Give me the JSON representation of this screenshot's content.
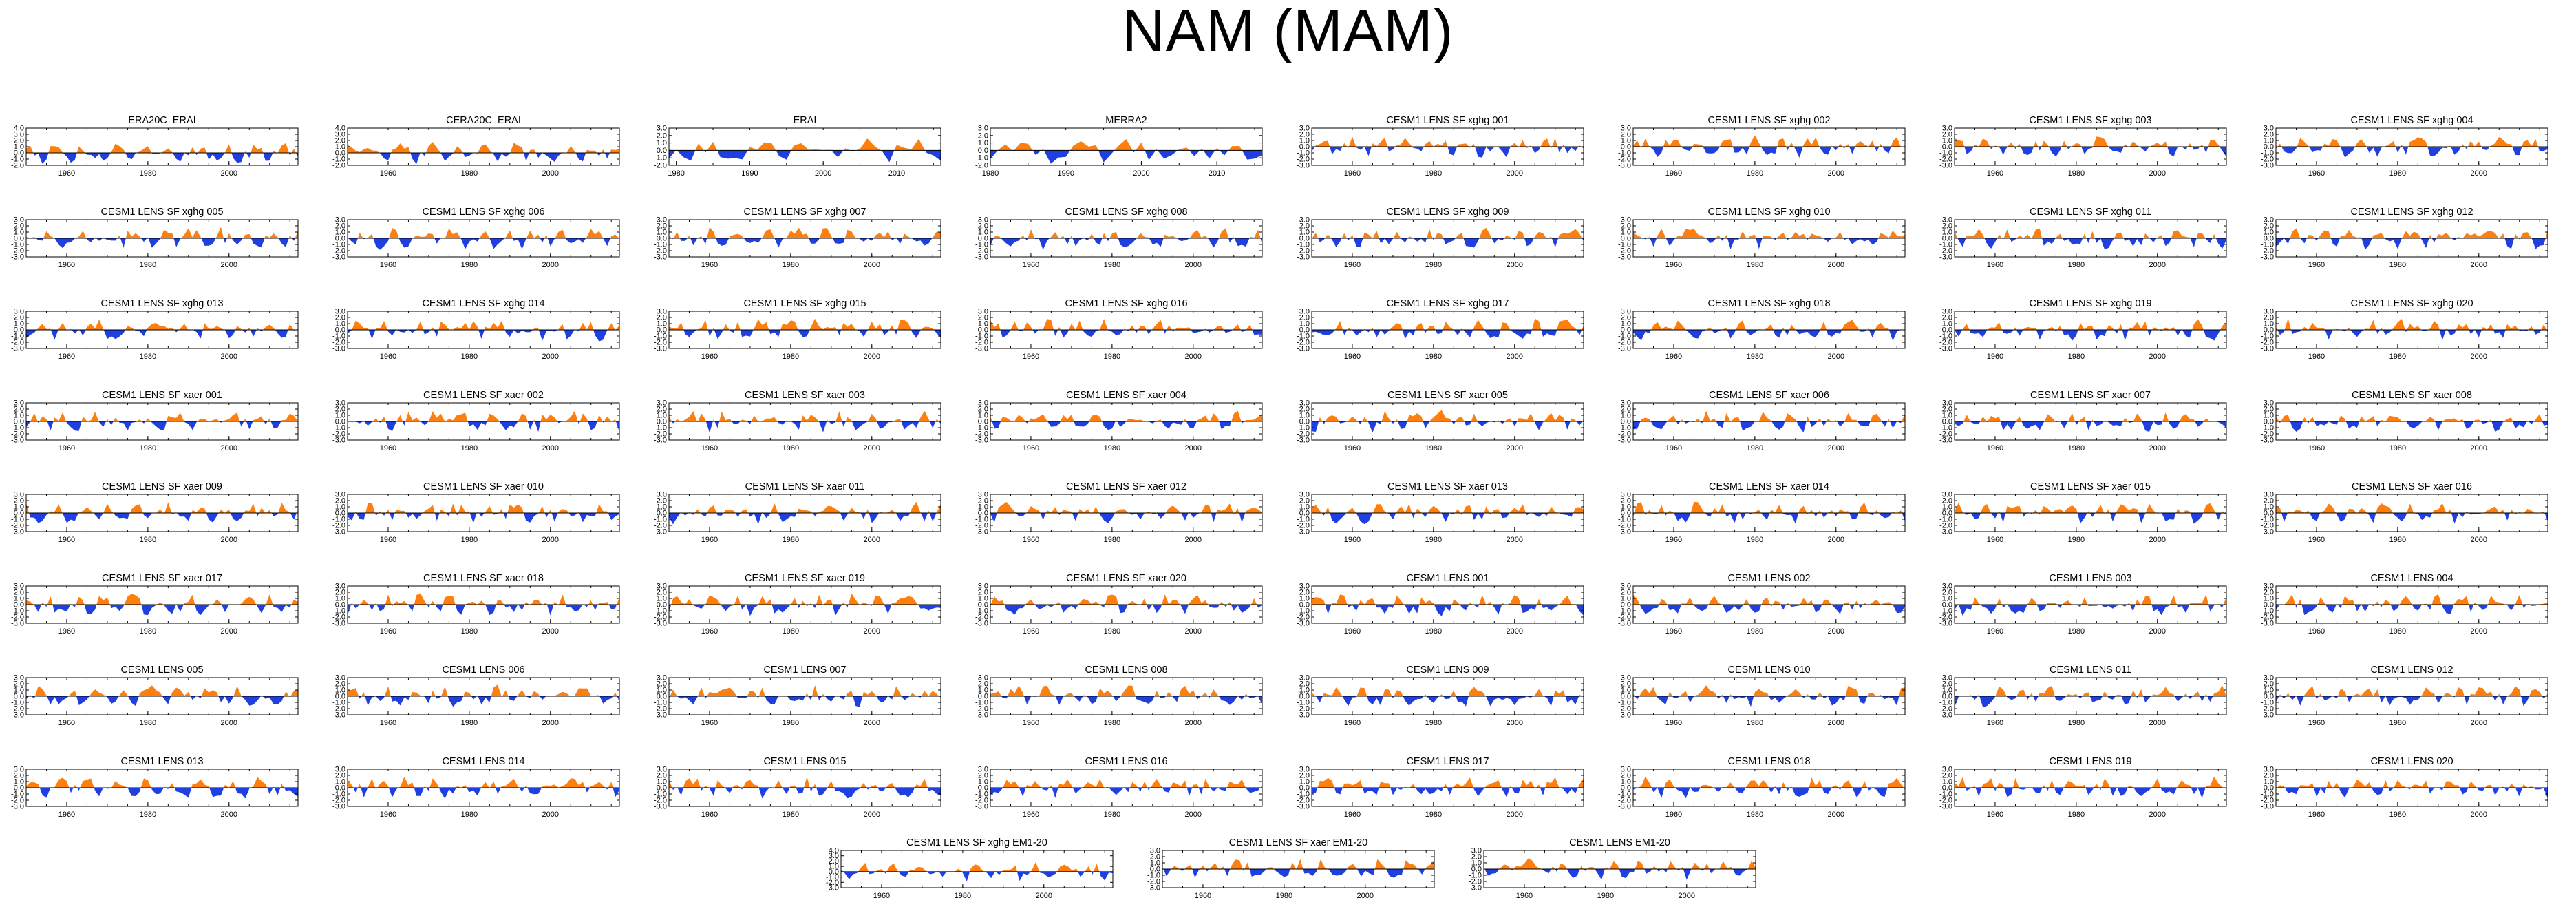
{
  "page": {
    "title": "NAM (MAM)"
  },
  "colors": {
    "positive": "#ff7f0e",
    "negative": "#1f3fe0",
    "axis": "#000000"
  },
  "chart_data": {
    "type": "area",
    "panels": [
      {
        "title": "ERA20C_ERAI",
        "x_range": [
          1950,
          2017
        ],
        "x_ticks": [
          1960,
          1980,
          2000
        ],
        "y_ticks": [
          "4.0",
          "3.0",
          "2.0",
          "1.0",
          "0.0",
          "-1.0",
          "-2.0"
        ],
        "ylim": [
          -2,
          4
        ],
        "seed": 1
      },
      {
        "title": "CERA20C_ERAI",
        "x_range": [
          1950,
          2017
        ],
        "x_ticks": [
          1960,
          1980,
          2000
        ],
        "y_ticks": [
          "4.0",
          "3.0",
          "2.0",
          "1.0",
          "0.0",
          "-1.0",
          "-2.0"
        ],
        "ylim": [
          -2,
          4
        ],
        "seed": 2
      },
      {
        "title": "ERAI",
        "x_range": [
          1979,
          2016
        ],
        "x_ticks": [
          1980,
          1990,
          2000,
          2010
        ],
        "y_ticks": [
          "3.0",
          "2.0",
          "1.0",
          "0.0",
          "-1.0",
          "-2.0"
        ],
        "ylim": [
          -2,
          3
        ],
        "seed": 3
      },
      {
        "title": "MERRA2",
        "x_range": [
          1980,
          2016
        ],
        "x_ticks": [
          1980,
          1990,
          2000,
          2010
        ],
        "y_ticks": [
          "3.0",
          "2.0",
          "1.0",
          "0.0",
          "-1.0",
          "-2.0"
        ],
        "ylim": [
          -2,
          3
        ],
        "seed": 4
      },
      {
        "title": "CESM1 LENS SF xghg 001",
        "seed": 5
      },
      {
        "title": "CESM1 LENS SF xghg 002",
        "seed": 6
      },
      {
        "title": "CESM1 LENS SF xghg 003",
        "seed": 7
      },
      {
        "title": "CESM1 LENS SF xghg 004",
        "seed": 8
      },
      {
        "title": "CESM1 LENS SF xghg 005",
        "seed": 9
      },
      {
        "title": "CESM1 LENS SF xghg 006",
        "seed": 10
      },
      {
        "title": "CESM1 LENS SF xghg 007",
        "seed": 11
      },
      {
        "title": "CESM1 LENS SF xghg 008",
        "seed": 12
      },
      {
        "title": "CESM1 LENS SF xghg 009",
        "seed": 13
      },
      {
        "title": "CESM1 LENS SF xghg 010",
        "seed": 14
      },
      {
        "title": "CESM1 LENS SF xghg 011",
        "seed": 15
      },
      {
        "title": "CESM1 LENS SF xghg 012",
        "seed": 16
      },
      {
        "title": "CESM1 LENS SF xghg 013",
        "seed": 17
      },
      {
        "title": "CESM1 LENS SF xghg 014",
        "seed": 18
      },
      {
        "title": "CESM1 LENS SF xghg 015",
        "seed": 19
      },
      {
        "title": "CESM1 LENS SF xghg 016",
        "seed": 20
      },
      {
        "title": "CESM1 LENS SF xghg 017",
        "seed": 21
      },
      {
        "title": "CESM1 LENS SF xghg 018",
        "seed": 22
      },
      {
        "title": "CESM1 LENS SF xghg 019",
        "seed": 23
      },
      {
        "title": "CESM1 LENS SF xghg 020",
        "seed": 24
      },
      {
        "title": "CESM1 LENS SF xaer 001",
        "seed": 25
      },
      {
        "title": "CESM1 LENS SF xaer 002",
        "seed": 26
      },
      {
        "title": "CESM1 LENS SF xaer 003",
        "seed": 27
      },
      {
        "title": "CESM1 LENS SF xaer 004",
        "seed": 28
      },
      {
        "title": "CESM1 LENS SF xaer 005",
        "seed": 29
      },
      {
        "title": "CESM1 LENS SF xaer 006",
        "seed": 30
      },
      {
        "title": "CESM1 LENS SF xaer 007",
        "seed": 31
      },
      {
        "title": "CESM1 LENS SF xaer 008",
        "seed": 32
      },
      {
        "title": "CESM1 LENS SF xaer 009",
        "seed": 33
      },
      {
        "title": "CESM1 LENS SF xaer 010",
        "seed": 34
      },
      {
        "title": "CESM1 LENS SF xaer 011",
        "seed": 35
      },
      {
        "title": "CESM1 LENS SF xaer 012",
        "seed": 36
      },
      {
        "title": "CESM1 LENS SF xaer 013",
        "seed": 37
      },
      {
        "title": "CESM1 LENS SF xaer 014",
        "seed": 38
      },
      {
        "title": "CESM1 LENS SF xaer 015",
        "seed": 39
      },
      {
        "title": "CESM1 LENS SF xaer 016",
        "seed": 40
      },
      {
        "title": "CESM1 LENS SF xaer 017",
        "seed": 41
      },
      {
        "title": "CESM1 LENS SF xaer 018",
        "seed": 42
      },
      {
        "title": "CESM1 LENS SF xaer 019",
        "seed": 43
      },
      {
        "title": "CESM1 LENS SF xaer 020",
        "seed": 44
      },
      {
        "title": "CESM1 LENS 001",
        "seed": 45
      },
      {
        "title": "CESM1 LENS 002",
        "seed": 46
      },
      {
        "title": "CESM1 LENS 003",
        "seed": 47
      },
      {
        "title": "CESM1 LENS 004",
        "seed": 48
      },
      {
        "title": "CESM1 LENS 005",
        "seed": 49
      },
      {
        "title": "CESM1 LENS 006",
        "seed": 50
      },
      {
        "title": "CESM1 LENS 007",
        "seed": 51
      },
      {
        "title": "CESM1 LENS 008",
        "seed": 52
      },
      {
        "title": "CESM1 LENS 009",
        "seed": 53
      },
      {
        "title": "CESM1 LENS 010",
        "seed": 54
      },
      {
        "title": "CESM1 LENS 011",
        "seed": 55
      },
      {
        "title": "CESM1 LENS 012",
        "seed": 56
      },
      {
        "title": "CESM1 LENS 013",
        "seed": 57
      },
      {
        "title": "CESM1 LENS 014",
        "seed": 58
      },
      {
        "title": "CESM1 LENS 015",
        "seed": 59
      },
      {
        "title": "CESM1 LENS 016",
        "seed": 60
      },
      {
        "title": "CESM1 LENS 017",
        "seed": 61
      },
      {
        "title": "CESM1 LENS 018",
        "seed": 62
      },
      {
        "title": "CESM1 LENS 019",
        "seed": 63
      },
      {
        "title": "CESM1 LENS 020",
        "seed": 64
      },
      {
        "title": "CESM1 LENS SF xghg EM1-20",
        "y_ticks": [
          "4.0",
          "3.0",
          "2.0",
          "1.0",
          "0.0",
          "-1.0",
          "-2.0",
          "-3.0"
        ],
        "ylim": [
          -3,
          4
        ],
        "seed": 65
      },
      {
        "title": "CESM1 LENS SF xaer EM1-20",
        "seed": 66
      },
      {
        "title": "CESM1 LENS EM1-20",
        "seed": 67
      }
    ],
    "defaults": {
      "x_range": [
        1950,
        2017
      ],
      "x_ticks": [
        1960,
        1980,
        2000
      ],
      "y_ticks": [
        "3.0",
        "2.0",
        "1.0",
        "0.0",
        "-1.0",
        "-2.0",
        "-3.0"
      ],
      "ylim": [
        -3,
        3
      ]
    }
  }
}
